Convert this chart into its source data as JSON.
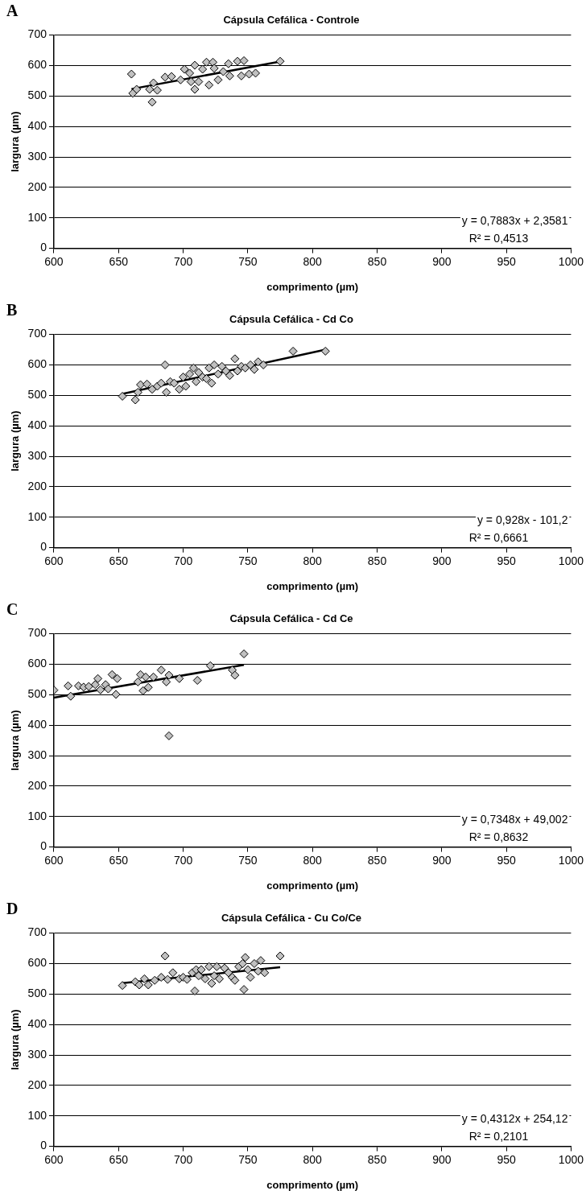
{
  "chart_data": [
    {
      "type": "scatter",
      "title": "Cápsula Cefálica - Controle",
      "xlabel": "comprimento (µm)",
      "ylabel": "largura (µm)",
      "xlim": [
        600,
        1000
      ],
      "xticks": [
        600,
        650,
        700,
        750,
        800,
        850,
        900,
        950,
        1000
      ],
      "ylim": [
        0,
        700
      ],
      "yticks": [
        0,
        100,
        200,
        300,
        400,
        500,
        600,
        700
      ],
      "grid": "y",
      "legend": false,
      "marker": "diamond",
      "annotations": [
        "A",
        "y = 0,7883x + 2,3581",
        "R² = 0,4513"
      ],
      "series": [
        {
          "color": "#c0c0c0",
          "x": [
            660,
            661,
            664,
            674,
            676,
            677,
            680,
            686,
            691,
            698,
            701,
            705,
            706,
            709,
            709,
            712,
            715,
            718,
            720,
            723,
            724,
            727,
            731,
            735,
            736,
            742,
            745,
            747,
            751,
            756,
            775
          ],
          "values": [
            572,
            509,
            522,
            522,
            480,
            543,
            519,
            562,
            564,
            553,
            588,
            575,
            547,
            522,
            601,
            547,
            588,
            611,
            536,
            611,
            591,
            553,
            580,
            606,
            566,
            614,
            566,
            616,
            572,
            575,
            614
          ]
        },
        {
          "type": "line",
          "color": "#000000",
          "marker": "none",
          "x": [
            660,
            775
          ],
          "values": [
            523,
            613
          ]
        }
      ]
    },
    {
      "type": "scatter",
      "title": "Cápsula Cefálica - Cd Co",
      "xlabel": "comprimento (µm)",
      "ylabel": "largura (µm)",
      "xlim": [
        600,
        1000
      ],
      "xticks": [
        600,
        650,
        700,
        750,
        800,
        850,
        900,
        950,
        1000
      ],
      "ylim": [
        0,
        700
      ],
      "yticks": [
        0,
        100,
        200,
        300,
        400,
        500,
        600,
        700
      ],
      "grid": "y",
      "legend": false,
      "marker": "diamond",
      "annotations": [
        "B",
        "y = 0,928x - 101,2",
        "R² = 0,6661"
      ],
      "series": [
        {
          "color": "#c0c0c0",
          "x": [
            653,
            663,
            665,
            667,
            672,
            676,
            680,
            683,
            686,
            687,
            690,
            693,
            697,
            700,
            702,
            705,
            708,
            710,
            712,
            715,
            718,
            720,
            722,
            724,
            727,
            730,
            733,
            736,
            740,
            742,
            745,
            748,
            752,
            755,
            758,
            762,
            785,
            810
          ],
          "values": [
            497,
            485,
            510,
            535,
            537,
            520,
            530,
            540,
            600,
            510,
            545,
            540,
            520,
            560,
            530,
            570,
            590,
            545,
            575,
            560,
            555,
            590,
            540,
            600,
            570,
            595,
            580,
            565,
            620,
            580,
            595,
            590,
            600,
            585,
            610,
            600,
            645,
            645
          ]
        },
        {
          "type": "line",
          "color": "#000000",
          "marker": "none",
          "x": [
            653,
            810
          ],
          "values": [
            505,
            650
          ]
        }
      ]
    },
    {
      "type": "scatter",
      "title": "Cápsula Cefálica - Cd Ce",
      "xlabel": "comprimento (µm)",
      "ylabel": "largura (µm)",
      "xlim": [
        600,
        1000
      ],
      "xticks": [
        600,
        650,
        700,
        750,
        800,
        850,
        900,
        950,
        1000
      ],
      "ylim": [
        0,
        700
      ],
      "yticks": [
        0,
        100,
        200,
        300,
        400,
        500,
        600,
        700
      ],
      "grid": "y",
      "legend": false,
      "marker": "diamond",
      "annotations": [
        "C",
        "y = 0,7348x + 49,002",
        "R² = 0,8632"
      ],
      "series": [
        {
          "color": "#c0c0c0",
          "x": [
            600,
            611,
            613,
            619,
            623,
            627,
            632,
            634,
            636,
            640,
            642,
            645,
            648,
            649,
            665,
            667,
            669,
            671,
            673,
            677,
            683,
            687,
            689,
            689,
            697,
            711,
            721,
            738,
            740,
            747
          ],
          "values": [
            515,
            529,
            495,
            529,
            525,
            527,
            533,
            553,
            516,
            533,
            519,
            566,
            501,
            553,
            542,
            566,
            513,
            558,
            524,
            558,
            581,
            542,
            564,
            365,
            553,
            547,
            595,
            581,
            564,
            634
          ]
        },
        {
          "type": "line",
          "color": "#000000",
          "marker": "none",
          "x": [
            600,
            747
          ],
          "values": [
            490,
            598
          ]
        }
      ]
    },
    {
      "type": "scatter",
      "title": "Cápsula Cefálica - Cu Co/Ce",
      "xlabel": "comprimento (µm)",
      "ylabel": "largura (µm)",
      "xlim": [
        600,
        1000
      ],
      "xticks": [
        600,
        650,
        700,
        750,
        800,
        850,
        900,
        950,
        1000
      ],
      "ylim": [
        0,
        700
      ],
      "yticks": [
        0,
        100,
        200,
        300,
        400,
        500,
        600,
        700
      ],
      "grid": "y",
      "legend": false,
      "marker": "diamond",
      "annotations": [
        "D",
        "y = 0,4312x + 254,12",
        "R² = 0,2101"
      ],
      "series": [
        {
          "color": "#c0c0c0",
          "x": [
            653,
            663,
            666,
            670,
            673,
            678,
            683,
            686,
            688,
            692,
            697,
            700,
            703,
            707,
            709,
            710,
            712,
            714,
            717,
            720,
            722,
            724,
            726,
            728,
            732,
            735,
            738,
            740,
            743,
            746,
            747,
            748,
            750,
            752,
            755,
            758,
            760,
            763,
            775
          ],
          "values": [
            528,
            540,
            530,
            550,
            530,
            545,
            555,
            625,
            548,
            570,
            550,
            555,
            548,
            570,
            510,
            580,
            560,
            580,
            550,
            590,
            535,
            560,
            590,
            550,
            585,
            570,
            555,
            545,
            590,
            600,
            515,
            620,
            580,
            555,
            600,
            575,
            610,
            570,
            625
          ]
        },
        {
          "type": "line",
          "color": "#000000",
          "marker": "none",
          "x": [
            653,
            775
          ],
          "values": [
            536,
            588
          ]
        }
      ]
    }
  ]
}
